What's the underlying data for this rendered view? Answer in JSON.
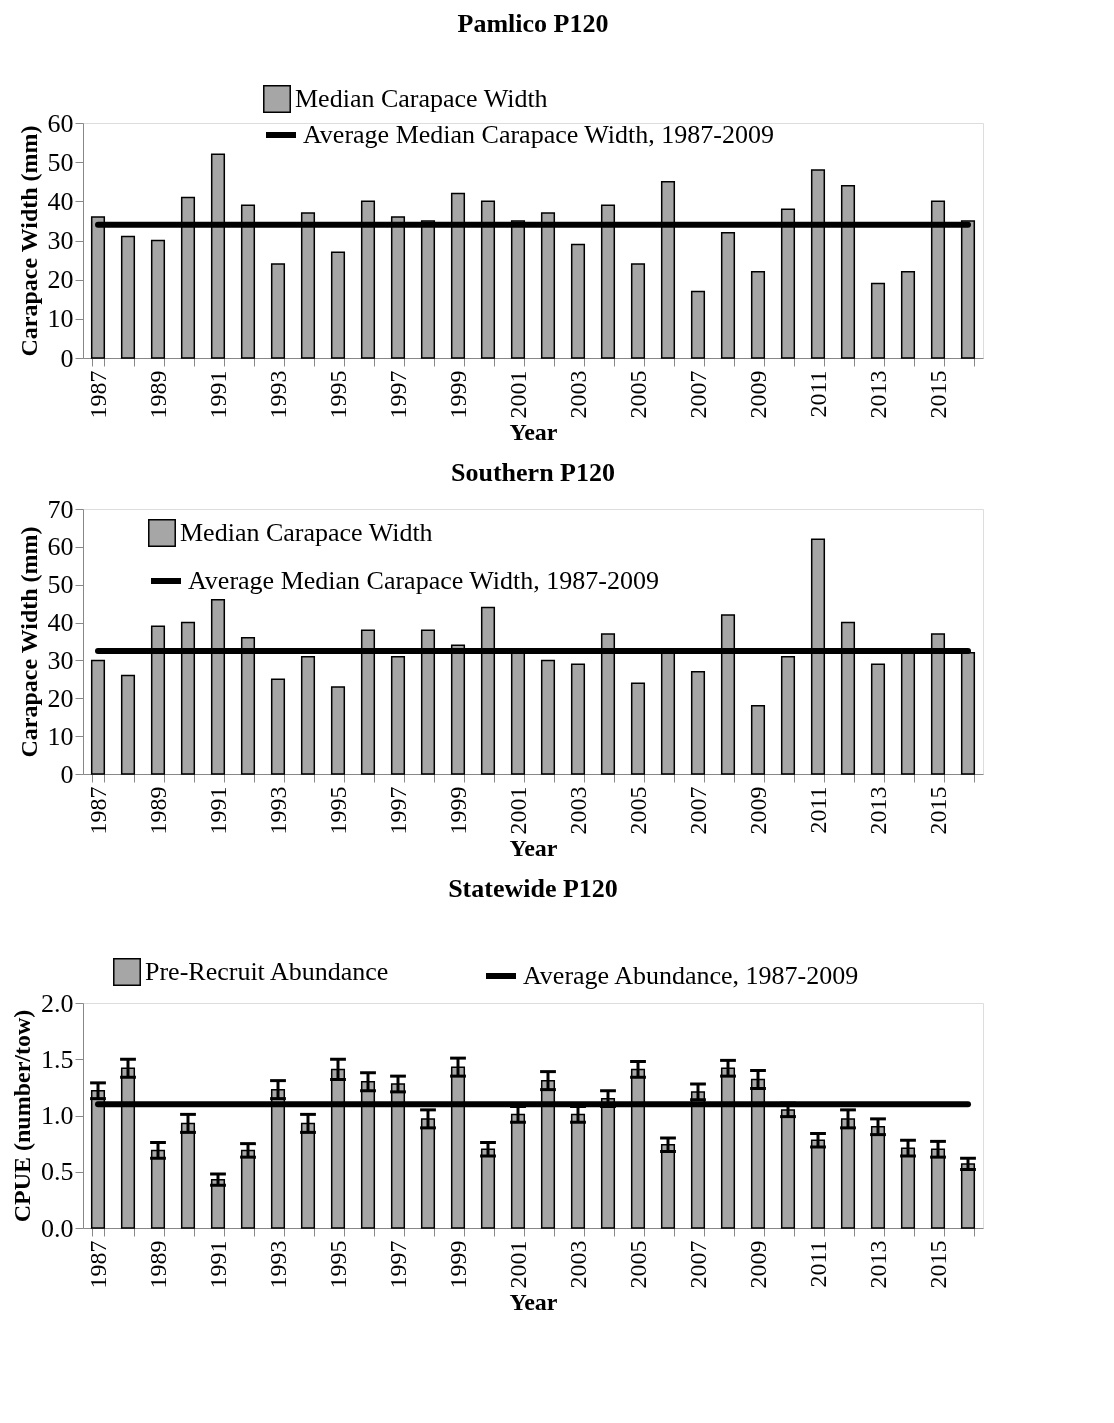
{
  "chart_data": [
    {
      "type": "bar",
      "title": "Pamlico P120",
      "xlabel": "Year",
      "ylabel": "Carapace Width (mm)",
      "categories": [
        "1987",
        null,
        "1989",
        null,
        "1991",
        null,
        "1993",
        null,
        "1995",
        null,
        "1997",
        null,
        "1999",
        null,
        "2001",
        null,
        "2003",
        null,
        "2005",
        null,
        "2007",
        null,
        "2009",
        null,
        "2011",
        null,
        "2013",
        null,
        "2015",
        null
      ],
      "series": [
        {
          "name": "Median Carapace Width",
          "type": "bar",
          "color": "#a6a6a6",
          "values": [
            36,
            31,
            30,
            41,
            52,
            39,
            24,
            37,
            27,
            40,
            36,
            35,
            42,
            40,
            35,
            37,
            29,
            39,
            24,
            45,
            17,
            32,
            22,
            38,
            48,
            44,
            19,
            22,
            40,
            35
          ]
        },
        {
          "name": "Average Median Carapace Width, 1987-2009",
          "type": "line",
          "color": "#000000",
          "values": [
            34,
            34,
            34,
            34,
            34,
            34,
            34,
            34,
            34,
            34,
            34,
            34,
            34,
            34,
            34,
            34,
            34,
            34,
            34,
            34,
            34,
            34,
            34,
            34,
            34,
            34,
            34,
            34,
            34,
            34
          ]
        }
      ],
      "ylim": [
        0,
        60
      ],
      "yticks": [
        0,
        10,
        20,
        30,
        40,
        50,
        60
      ],
      "grid": false,
      "legend": "top"
    },
    {
      "type": "bar",
      "title": "Southern P120",
      "xlabel": "Year",
      "ylabel": "Carapace Width (mm)",
      "categories": [
        "1987",
        null,
        "1989",
        null,
        "1991",
        null,
        "1993",
        null,
        "1995",
        null,
        "1997",
        null,
        "1999",
        null,
        "2001",
        null,
        "2003",
        null,
        "2005",
        null,
        "2007",
        null,
        "2009",
        null,
        "2011",
        null,
        "2013",
        null,
        "2015",
        null
      ],
      "series": [
        {
          "name": "Median Carapace Width",
          "type": "bar",
          "color": "#a6a6a6",
          "values": [
            30,
            26,
            39,
            40,
            46,
            36,
            25,
            31,
            23,
            38,
            31,
            38,
            34,
            44,
            32,
            30,
            29,
            37,
            24,
            32,
            27,
            42,
            18,
            31,
            62,
            40,
            29,
            32,
            37,
            32
          ]
        },
        {
          "name": "Average Median Carapace Width, 1987-2009",
          "type": "line",
          "color": "#000000",
          "values": [
            32.5,
            32.5,
            32.5,
            32.5,
            32.5,
            32.5,
            32.5,
            32.5,
            32.5,
            32.5,
            32.5,
            32.5,
            32.5,
            32.5,
            32.5,
            32.5,
            32.5,
            32.5,
            32.5,
            32.5,
            32.5,
            32.5,
            32.5,
            32.5,
            32.5,
            32.5,
            32.5,
            32.5,
            32.5,
            32.5
          ]
        }
      ],
      "ylim": [
        0,
        70
      ],
      "yticks": [
        0,
        10,
        20,
        30,
        40,
        50,
        60,
        70
      ],
      "grid": false,
      "legend": "top left"
    },
    {
      "type": "bar",
      "title": "Statewide P120",
      "xlabel": "Year",
      "ylabel": "CPUE (number/tow)",
      "categories": [
        "1987",
        null,
        "1989",
        null,
        "1991",
        null,
        "1993",
        null,
        "1995",
        null,
        "1997",
        null,
        "1999",
        null,
        "2001",
        null,
        "2003",
        null,
        "2005",
        null,
        "2007",
        null,
        "2009",
        null,
        "2011",
        null,
        "2013",
        null,
        "2015",
        null
      ],
      "series": [
        {
          "name": "Pre-Recruit Abundance",
          "type": "bar",
          "color": "#a6a6a6",
          "values": [
            1.22,
            1.42,
            0.69,
            0.93,
            0.43,
            0.69,
            1.23,
            0.93,
            1.41,
            1.3,
            1.28,
            0.97,
            1.43,
            0.7,
            1.01,
            1.31,
            1.01,
            1.15,
            1.41,
            0.74,
            1.21,
            1.42,
            1.32,
            1.05,
            0.78,
            0.97,
            0.9,
            0.71,
            0.7,
            0.57
          ],
          "errors": [
            0.07,
            0.08,
            0.07,
            0.08,
            0.05,
            0.06,
            0.08,
            0.08,
            0.09,
            0.08,
            0.07,
            0.08,
            0.08,
            0.06,
            0.07,
            0.08,
            0.07,
            0.07,
            0.07,
            0.06,
            0.07,
            0.07,
            0.08,
            0.06,
            0.06,
            0.08,
            0.07,
            0.07,
            0.07,
            0.05
          ]
        },
        {
          "name": "Average Abundance, 1987-2009",
          "type": "line",
          "color": "#000000",
          "values": [
            1.1,
            1.1,
            1.1,
            1.1,
            1.1,
            1.1,
            1.1,
            1.1,
            1.1,
            1.1,
            1.1,
            1.1,
            1.1,
            1.1,
            1.1,
            1.1,
            1.1,
            1.1,
            1.1,
            1.1,
            1.1,
            1.1,
            1.1,
            1.1,
            1.1,
            1.1,
            1.1,
            1.1,
            1.1,
            1.1
          ]
        }
      ],
      "ylim": [
        0,
        2
      ],
      "yticks": [
        {
          "value": 0,
          "label": "0.0"
        },
        0.5,
        {
          "value": 1,
          "label": "1.0"
        },
        1.5,
        {
          "value": 2,
          "label": "2.0"
        }
      ],
      "grid": false,
      "legend": "top"
    }
  ]
}
